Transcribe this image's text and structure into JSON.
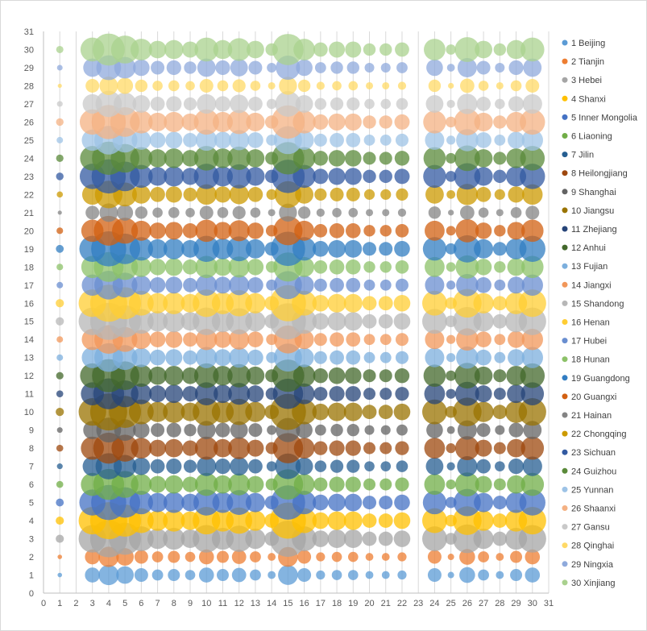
{
  "chart_data": {
    "type": "scatter",
    "subtype": "bubble",
    "title": "",
    "xlabel": "",
    "ylabel": "",
    "xlim": [
      0,
      31
    ],
    "ylim": [
      0,
      31
    ],
    "x_ticks": [
      0,
      1,
      2,
      3,
      4,
      5,
      6,
      7,
      8,
      9,
      10,
      11,
      12,
      13,
      14,
      15,
      16,
      17,
      18,
      19,
      20,
      21,
      22,
      23,
      24,
      25,
      26,
      27,
      28,
      29,
      30,
      31
    ],
    "y_ticks": [
      0,
      1,
      2,
      3,
      4,
      5,
      6,
      7,
      8,
      9,
      10,
      11,
      12,
      13,
      14,
      15,
      16,
      17,
      18,
      19,
      20,
      21,
      22,
      23,
      24,
      25,
      26,
      27,
      28,
      29,
      30,
      31
    ],
    "grid": "vertical",
    "legend_position": "right",
    "x_values": [
      1,
      3,
      4,
      5,
      6,
      7,
      8,
      9,
      10,
      11,
      12,
      13,
      14,
      15,
      16,
      17,
      18,
      19,
      20,
      21,
      22,
      24,
      25,
      26,
      27,
      28,
      29,
      30
    ],
    "x_weights": [
      0.05,
      0.55,
      1.0,
      0.75,
      0.45,
      0.3,
      0.35,
      0.25,
      0.55,
      0.35,
      0.5,
      0.3,
      0.15,
      0.95,
      0.45,
      0.2,
      0.25,
      0.25,
      0.15,
      0.15,
      0.2,
      0.45,
      0.1,
      0.6,
      0.3,
      0.15,
      0.35,
      0.55
    ],
    "series": [
      {
        "name": "1 Beijing",
        "color": "#5b9bd5",
        "scale": 0.3
      },
      {
        "name": "2 Tianjin",
        "color": "#ed7d31",
        "scale": 0.3
      },
      {
        "name": "3 Hebei",
        "color": "#a5a5a5",
        "scale": 1.0
      },
      {
        "name": "4 Shanxi",
        "color": "#ffc000",
        "scale": 1.0
      },
      {
        "name": "5 Inner Mongolia",
        "color": "#4472c4",
        "scale": 0.9
      },
      {
        "name": "6 Liaoning",
        "color": "#70ad47",
        "scale": 0.7
      },
      {
        "name": "7 Jilin",
        "color": "#255e91",
        "scale": 0.5
      },
      {
        "name": "8 Heilongjiang",
        "color": "#9e480e",
        "scale": 0.7
      },
      {
        "name": "9 Shanghai",
        "color": "#636363",
        "scale": 0.45
      },
      {
        "name": "10 Jiangsu",
        "color": "#997300",
        "scale": 1.0
      },
      {
        "name": "11 Zhejiang",
        "color": "#264478",
        "scale": 0.7
      },
      {
        "name": "12 Anhui",
        "color": "#43682b",
        "scale": 0.8
      },
      {
        "name": "13 Fujian",
        "color": "#7cafdd",
        "scale": 0.6
      },
      {
        "name": "14 Jiangxi",
        "color": "#f1975a",
        "scale": 0.6
      },
      {
        "name": "15 Shandong",
        "color": "#b7b7b7",
        "scale": 1.0
      },
      {
        "name": "16 Henan",
        "color": "#ffcd33",
        "scale": 1.0
      },
      {
        "name": "17 Hubei",
        "color": "#698ed0",
        "scale": 0.6
      },
      {
        "name": "18 Hunan",
        "color": "#8cc168",
        "scale": 0.65
      },
      {
        "name": "19 Guangdong",
        "color": "#327dc2",
        "scale": 0.9
      },
      {
        "name": "20 Guangxi",
        "color": "#d26012",
        "scale": 0.65
      },
      {
        "name": "21 Hainan",
        "color": "#848484",
        "scale": 0.25
      },
      {
        "name": "22 Chongqing",
        "color": "#cc9a00",
        "scale": 0.55
      },
      {
        "name": "23 Sichuan",
        "color": "#335aa1",
        "scale": 0.85
      },
      {
        "name": "24 Guizhou",
        "color": "#5a8a39",
        "scale": 0.8
      },
      {
        "name": "25 Yunnan",
        "color": "#9dc3e6",
        "scale": 0.6
      },
      {
        "name": "26 Shaanxi",
        "color": "#f4b183",
        "scale": 0.85
      },
      {
        "name": "27 Gansu",
        "color": "#c9c9c9",
        "scale": 0.5
      },
      {
        "name": "28 Qinghai",
        "color": "#ffd966",
        "scale": 0.25
      },
      {
        "name": "29 Ningxia",
        "color": "#8faadc",
        "scale": 0.45
      },
      {
        "name": "30 Xinjiang",
        "color": "#a9d18e",
        "scale": 0.75
      }
    ],
    "note_bubbles": "Each series y equals its index (1-30); bubbles at each x value, size proportional to x_weights × series scale (estimated)."
  }
}
